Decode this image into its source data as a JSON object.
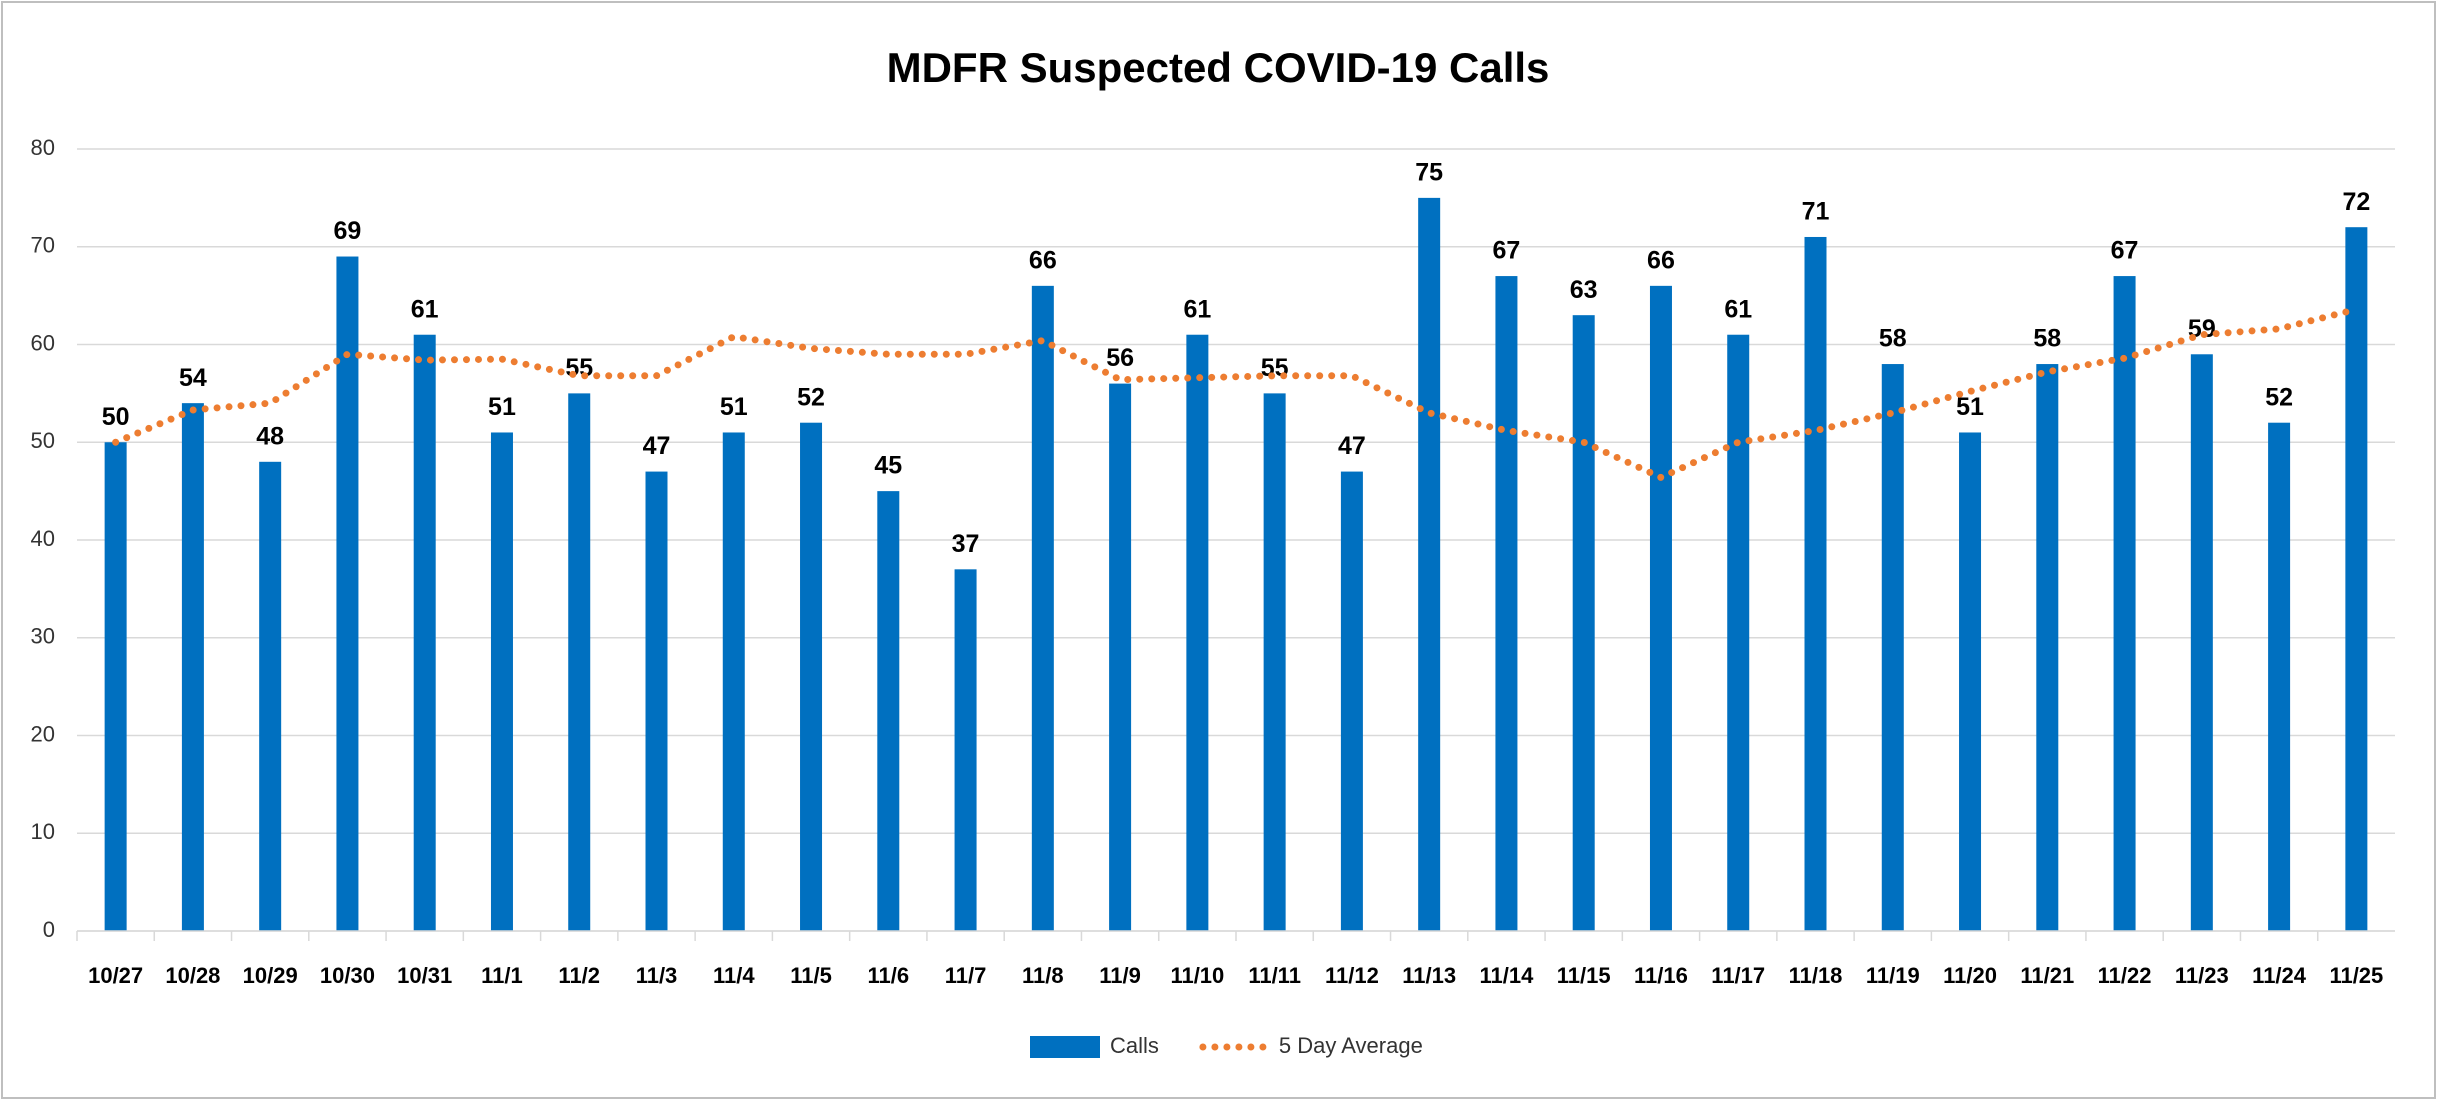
{
  "chart_data": {
    "type": "bar_line",
    "title": "MDFR Suspected COVID-19 Calls",
    "categories": [
      "10/27",
      "10/28",
      "10/29",
      "10/30",
      "10/31",
      "11/1",
      "11/2",
      "11/3",
      "11/4",
      "11/5",
      "11/6",
      "11/7",
      "11/8",
      "11/9",
      "11/10",
      "11/11",
      "11/12",
      "11/13",
      "11/14",
      "11/15",
      "11/16",
      "11/17",
      "11/18",
      "11/19",
      "11/20",
      "11/21",
      "11/22",
      "11/23",
      "11/24",
      "11/25"
    ],
    "series": [
      {
        "name": "Calls",
        "type": "bar",
        "color": "#0070c0",
        "values": [
          50,
          54,
          48,
          69,
          61,
          51,
          55,
          47,
          51,
          52,
          45,
          37,
          66,
          56,
          61,
          55,
          47,
          75,
          67,
          63,
          66,
          61,
          71,
          58,
          51,
          58,
          67,
          59,
          52,
          72
        ]
      },
      {
        "name": "5 Day Average",
        "type": "line",
        "color": "#ed7d31",
        "values": [
          50,
          53.3,
          54,
          59,
          58.4,
          58.5,
          56.8,
          56.8,
          60.8,
          59.6,
          59,
          59,
          60.4,
          56.4,
          56.6,
          56.8,
          56.8,
          53,
          51.2,
          50,
          46.4,
          50,
          51.2,
          53,
          55.2,
          57.2,
          58.6,
          61,
          61.6,
          63.6
        ]
      }
    ],
    "ylim": [
      0,
      80
    ],
    "yticks": [
      0,
      10,
      20,
      30,
      40,
      50,
      60,
      70,
      80
    ],
    "grid": true,
    "legend": "bottom"
  }
}
